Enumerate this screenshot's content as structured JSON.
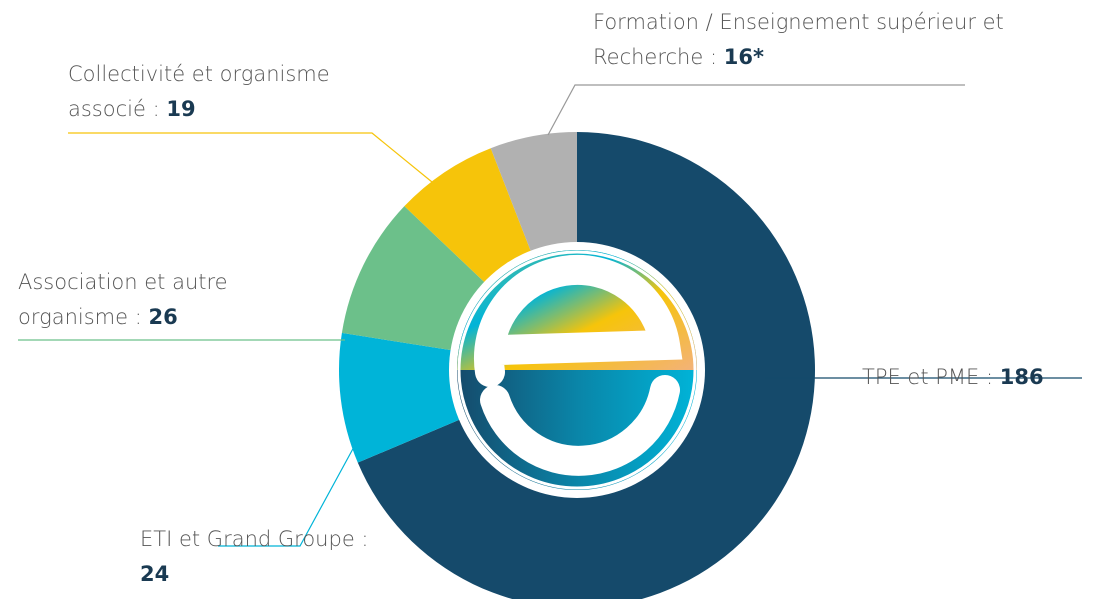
{
  "chart_data": {
    "type": "donut",
    "categories": [
      "TPE et PME :",
      "ETI et Grand Groupe :",
      "Association et autre organisme :",
      "Collectivité et organisme associé :",
      "Formation / Enseignement supérieur et Recherche :"
    ],
    "values": [
      186,
      24,
      26,
      19,
      16
    ],
    "value_labels": [
      "186",
      "24",
      "26",
      "19",
      "16*"
    ],
    "colors": [
      "#154a6b",
      "#00b4d8",
      "#6cc08a",
      "#f6c40a",
      "#b1b1b1"
    ]
  }
}
